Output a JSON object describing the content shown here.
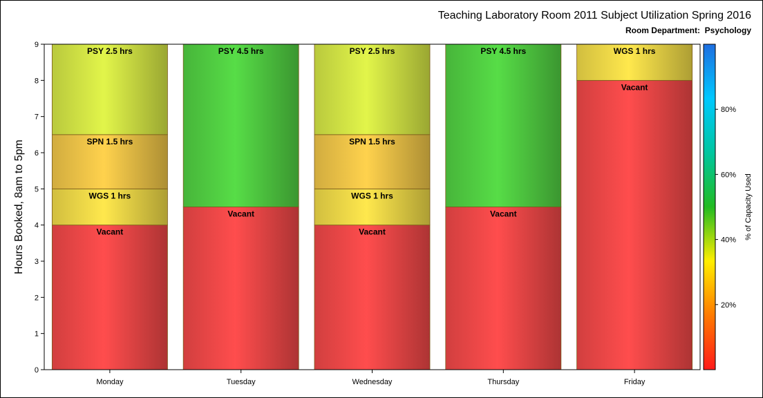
{
  "chart_data": {
    "type": "bar",
    "stacked": true,
    "title": "Teaching Laboratory Room 2011 Subject Utilization Spring 2016",
    "subtitle": "Room Department:  Psychology",
    "ylabel": "Hours Booked, 8am to 5pm",
    "xlabel": "",
    "ylim": [
      0,
      9
    ],
    "yticks": [
      0,
      1,
      2,
      3,
      4,
      5,
      6,
      7,
      8,
      9
    ],
    "grid": false,
    "categories": [
      "Monday",
      "Tuesday",
      "Wednesday",
      "Thursday",
      "Friday"
    ],
    "bars": [
      {
        "category": "Monday",
        "segments": [
          {
            "label": "Vacant",
            "value": 4,
            "color": "#ff4d4d"
          },
          {
            "label": "WGS 1 hrs",
            "value": 1,
            "color": "#ffe84d"
          },
          {
            "label": "SPN 1.5 hrs",
            "value": 1.5,
            "color": "#ffd24d"
          },
          {
            "label": "PSY 2.5 hrs",
            "value": 2.5,
            "color": "#e2f54a"
          }
        ]
      },
      {
        "category": "Tuesday",
        "segments": [
          {
            "label": "Vacant",
            "value": 4.5,
            "color": "#ff4d4d"
          },
          {
            "label": "PSY 4.5 hrs",
            "value": 4.5,
            "color": "#57dd47"
          }
        ]
      },
      {
        "category": "Wednesday",
        "segments": [
          {
            "label": "Vacant",
            "value": 4,
            "color": "#ff4d4d"
          },
          {
            "label": "WGS 1 hrs",
            "value": 1,
            "color": "#ffe84d"
          },
          {
            "label": "SPN 1.5 hrs",
            "value": 1.5,
            "color": "#ffd24d"
          },
          {
            "label": "PSY 2.5 hrs",
            "value": 2.5,
            "color": "#e2f54a"
          }
        ]
      },
      {
        "category": "Thursday",
        "segments": [
          {
            "label": "Vacant",
            "value": 4.5,
            "color": "#ff4d4d"
          },
          {
            "label": "PSY 4.5 hrs",
            "value": 4.5,
            "color": "#57dd47"
          }
        ]
      },
      {
        "category": "Friday",
        "segments": [
          {
            "label": "Vacant",
            "value": 8,
            "color": "#ff4d4d"
          },
          {
            "label": "WGS 1 hrs",
            "value": 1,
            "color": "#ffe84d"
          }
        ]
      }
    ],
    "colorbar": {
      "label": "% of Capacity Used",
      "range": [
        0,
        100
      ],
      "ticks": [
        20,
        40,
        60,
        80
      ],
      "tick_labels": [
        "20%",
        "40%",
        "60%",
        "80%"
      ],
      "stops": [
        "#ff1a1a",
        "#ff7a00",
        "#ffee00",
        "#22bb22",
        "#00c6a0",
        "#00c8ff",
        "#1e6ee0"
      ]
    }
  }
}
